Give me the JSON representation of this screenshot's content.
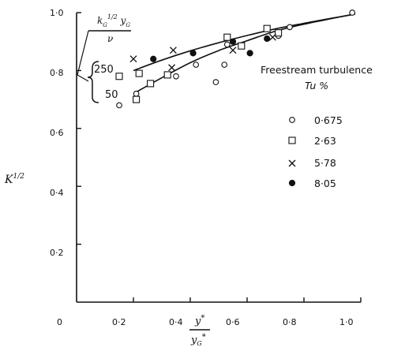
{
  "chart_data": {
    "type": "scatter",
    "title": "",
    "xlabel_num": "y*",
    "xlabel_den": "y*G",
    "ylabel": "K^1/2",
    "xlim": [
      0,
      1.0
    ],
    "ylim": [
      0,
      1.0
    ],
    "x_ticks": [
      "0",
      "0·2",
      "0·4",
      "0·6",
      "0·8",
      "1·0"
    ],
    "y_ticks": [
      "0·2",
      "0·4",
      "0·6",
      "0·8",
      "1·0"
    ],
    "legend": {
      "title_line1": "Freestream turbulence",
      "title_line2": "Tu %",
      "entries": [
        {
          "marker": "circle-open",
          "label": "0·675"
        },
        {
          "marker": "square-open",
          "label": "2·63"
        },
        {
          "marker": "cross",
          "label": "5·78"
        },
        {
          "marker": "circle-filled",
          "label": "8·05"
        }
      ]
    },
    "annotation": {
      "param_top": "k_G^1/2 y_G",
      "param_bottom": "ν",
      "curve_labels": [
        "250",
        "50"
      ]
    },
    "curves": [
      {
        "label": "250",
        "x": [
          0.2,
          0.3,
          0.4,
          0.5,
          0.6,
          0.7,
          0.8,
          0.9,
          0.98
        ],
        "y": [
          0.8,
          0.836,
          0.868,
          0.896,
          0.921,
          0.944,
          0.963,
          0.981,
          0.995
        ]
      },
      {
        "label": "50",
        "x": [
          0.2,
          0.3,
          0.4,
          0.5,
          0.6,
          0.7,
          0.8,
          0.9,
          0.98
        ],
        "y": [
          0.72,
          0.775,
          0.827,
          0.869,
          0.903,
          0.936,
          0.96,
          0.98,
          0.995
        ]
      }
    ],
    "series": [
      {
        "name": "0·675",
        "marker": "circle-open",
        "x": [
          0.15,
          0.21,
          0.35,
          0.42,
          0.49,
          0.52,
          0.53,
          0.71,
          0.75,
          0.97
        ],
        "y": [
          0.68,
          0.72,
          0.78,
          0.82,
          0.76,
          0.82,
          0.89,
          0.92,
          0.95,
          1.0
        ]
      },
      {
        "name": "2·63",
        "marker": "square-open",
        "x": [
          0.15,
          0.21,
          0.22,
          0.26,
          0.32,
          0.53,
          0.58,
          0.67,
          0.71
        ],
        "y": [
          0.78,
          0.7,
          0.79,
          0.755,
          0.785,
          0.915,
          0.885,
          0.945,
          0.93
        ]
      },
      {
        "name": "5·78",
        "marker": "cross",
        "x": [
          0.2,
          0.34,
          0.335,
          0.55,
          0.69
        ],
        "y": [
          0.84,
          0.87,
          0.81,
          0.87,
          0.915
        ]
      },
      {
        "name": "8·05",
        "marker": "circle-filled",
        "x": [
          0.27,
          0.41,
          0.55,
          0.61,
          0.67
        ],
        "y": [
          0.84,
          0.86,
          0.9,
          0.86,
          0.91
        ]
      }
    ]
  }
}
